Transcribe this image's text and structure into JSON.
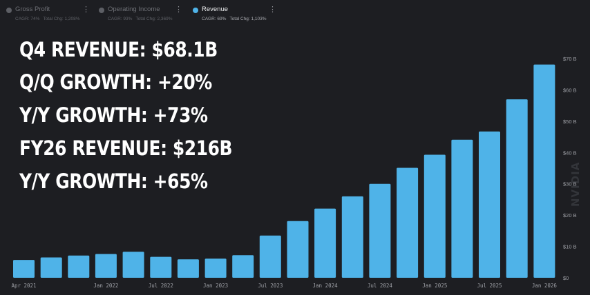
{
  "legend": [
    {
      "name": "Gross Profit",
      "cagr": "CAGR: 74%",
      "total": "Total Chg: 1,208%",
      "state": "inactive"
    },
    {
      "name": "Operating Income",
      "cagr": "CAGR: 93%",
      "total": "Total Chg: 2,369%",
      "state": "inactive"
    },
    {
      "name": "Revenue",
      "cagr": "CAGR: 69%",
      "total": "Total Chg: 1,103%",
      "state": "active"
    }
  ],
  "headlines": [
    "Q4 REVENUE: $68.1B",
    "Q/Q GROWTH: +20%",
    "Y/Y GROWTH: +73%",
    "FY26 REVENUE: $216B",
    "Y/Y GROWTH: +65%"
  ],
  "watermark": "NVIDIA",
  "chart_data": {
    "type": "bar",
    "series": [
      {
        "name": "Revenue",
        "color": "#4fb3e8"
      }
    ],
    "values": [
      5.7,
      6.5,
      7.1,
      7.6,
      8.3,
      6.7,
      5.9,
      6.1,
      7.2,
      13.5,
      18.1,
      22.1,
      26.0,
      30.0,
      35.1,
      39.3,
      44.1,
      46.7,
      57.0,
      68.1
    ],
    "xticks": [
      {
        "index": 0,
        "label": "Apr 2021"
      },
      {
        "index": 3,
        "label": "Jan 2022"
      },
      {
        "index": 5,
        "label": "Jul 2022"
      },
      {
        "index": 7,
        "label": "Jan 2023"
      },
      {
        "index": 9,
        "label": "Jul 2023"
      },
      {
        "index": 11,
        "label": "Jan 2024"
      },
      {
        "index": 13,
        "label": "Jul 2024"
      },
      {
        "index": 15,
        "label": "Jan 2025"
      },
      {
        "index": 17,
        "label": "Jul 2025"
      },
      {
        "index": 19,
        "label": "Jan 2026"
      }
    ],
    "yticks": [
      {
        "value": 0,
        "label": "$0"
      },
      {
        "value": 10,
        "label": "$10 B"
      },
      {
        "value": 20,
        "label": "$20 B"
      },
      {
        "value": 30,
        "label": "$30 B"
      },
      {
        "value": 40,
        "label": "$40 B"
      },
      {
        "value": 50,
        "label": "$50 B"
      },
      {
        "value": 60,
        "label": "$60 B"
      },
      {
        "value": 70,
        "label": "$70 B"
      }
    ],
    "ylim": [
      0,
      70
    ],
    "yaxis_position": "right",
    "grid": false
  }
}
